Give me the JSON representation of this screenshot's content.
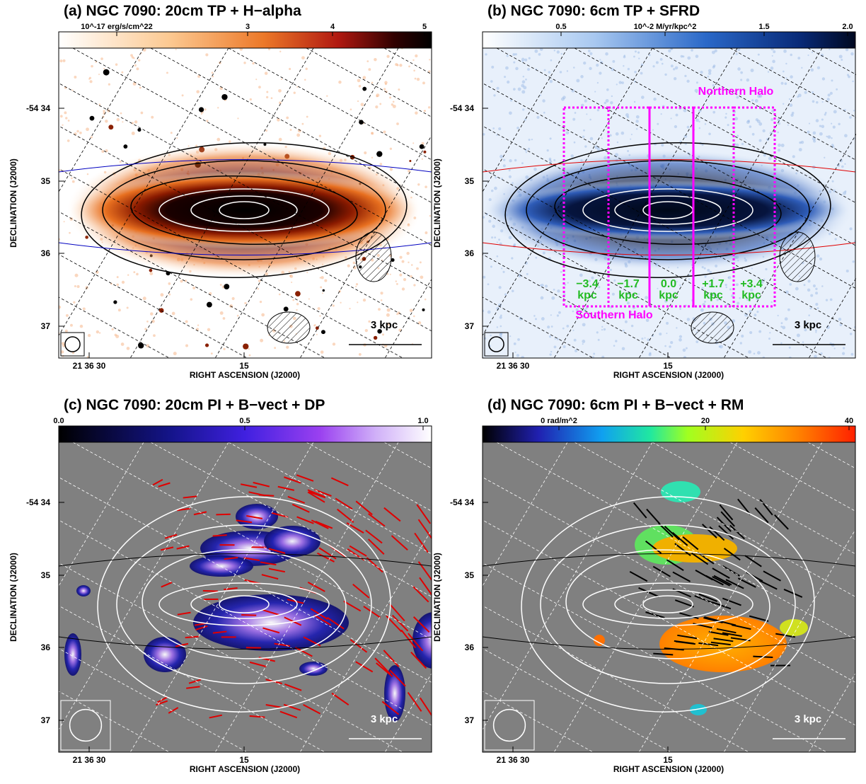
{
  "panels": [
    {
      "title": "(a) NGC 7090: 20cm TP + H−alpha",
      "colorbar_labels": [
        "10^-17 erg/s/cm^22",
        "3",
        "4",
        "5"
      ],
      "y_tick_labels": [
        "-54 34",
        "35",
        "36",
        "37"
      ],
      "x_tick_labels": [
        "21 36 30",
        "15"
      ],
      "x_axis_title": "RIGHT ASCENSION (J2000)",
      "y_axis_title": "DECLINATION (J2000)",
      "scale_label": "3 kpc"
    },
    {
      "title": "(b) NGC 7090: 6cm TP + SFRD",
      "colorbar_labels": [
        "0.5",
        "10^-2 M/yr/kpc^2",
        "1.5",
        "2.0"
      ],
      "y_tick_labels": [
        "-54 34",
        "35",
        "36",
        "37"
      ],
      "x_tick_labels": [
        "21 36 30",
        "15"
      ],
      "x_axis_title": "RIGHT ASCENSION (J2000)",
      "y_axis_title": "DECLINATION (J2000)",
      "scale_label": "3 kpc",
      "northern_label": "Northern Halo",
      "southern_label": "Southern Halo",
      "offsets": [
        {
          "value": "−3.4",
          "unit": "kpc"
        },
        {
          "value": "−1.7",
          "unit": "kpc"
        },
        {
          "value": "0.0",
          "unit": "kpc"
        },
        {
          "value": "+1.7",
          "unit": "kpc"
        },
        {
          "value": "+3.4",
          "unit": "kpc"
        }
      ]
    },
    {
      "title": "(c) NGC 7090: 20cm PI + B−vect + DP",
      "colorbar_labels": [
        "0.0",
        "0.5",
        "1.0"
      ],
      "y_tick_labels": [
        "-54 34",
        "35",
        "36",
        "37"
      ],
      "x_tick_labels": [
        "21 36 30",
        "15"
      ],
      "x_axis_title": "RIGHT ASCENSION (J2000)",
      "y_axis_title": "DECLINATION (J2000)",
      "scale_label": "3 kpc"
    },
    {
      "title": "(d) NGC 7090: 6cm PI + B−vect + RM",
      "colorbar_labels": [
        "0 rad/m^2",
        "20",
        "40"
      ],
      "y_tick_labels": [
        "-54 34",
        "35",
        "36",
        "37"
      ],
      "x_tick_labels": [
        "21 36 30",
        "15"
      ],
      "x_axis_title": "RIGHT ASCENSION (J2000)",
      "y_axis_title": "DECLINATION (J2000)",
      "scale_label": "3 kpc"
    }
  ]
}
